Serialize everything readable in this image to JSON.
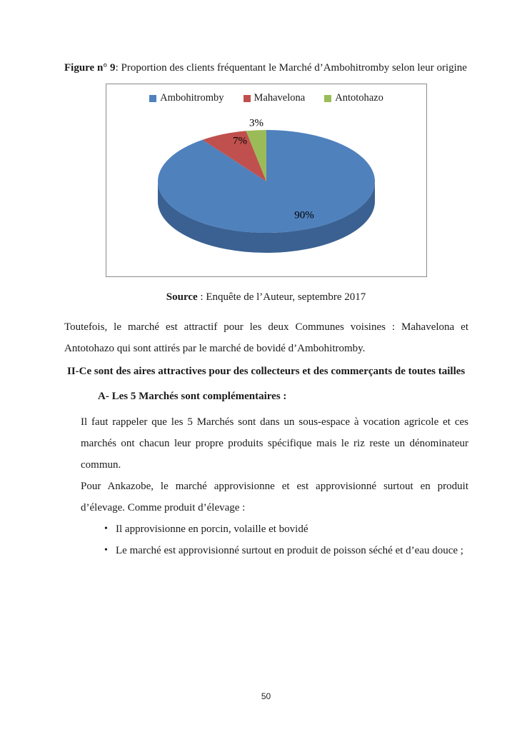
{
  "figure": {
    "title_bold": "Figure n° 9",
    "title_rest": ": Proportion des clients fréquentant le Marché d’Ambohitromby selon leur origine",
    "source_bold": "Source",
    "source_rest": " : Enquête de l’Auteur, septembre 2017"
  },
  "chart_data": {
    "type": "pie",
    "style": "3d",
    "labels": [
      "Ambohitromby",
      "Mahavelona",
      "Antotohazo"
    ],
    "values": [
      90,
      7,
      3
    ],
    "value_labels": [
      "90%",
      "7%",
      "3%"
    ],
    "colors": [
      "#4f81bd",
      "#c0504d",
      "#9bbb59"
    ],
    "side_color": "#3a6191",
    "legend_position": "top",
    "unit": "percent",
    "start_angle_deg": 0,
    "direction": "clockwise"
  },
  "body": {
    "para1": "Toutefois, le marché est attractif pour les deux Communes voisines : Mahavelona et Antotohazo qui sont attirés par le marché de bovidé d’Ambohitromby.",
    "heading2": "II-Ce sont des aires attractives pour des collecteurs et des commerçants de toutes tailles",
    "headingA": "A- Les 5 Marchés sont complémentaires :",
    "para2": "Il faut rappeler que les 5 Marchés sont dans un sous-espace à vocation agricole et ces marchés ont chacun leur propre produits spécifique mais le riz reste un dénominateur commun.",
    "para3": "Pour Ankazobe, le marché approvisionne et est approvisionné surtout en produit d’élevage. Comme produit d’élevage :",
    "bullets": [
      "Il approvisionne en porcin, volaille et bovidé",
      "Le marché est approvisionné surtout en produit de poisson séché et d’eau douce ;"
    ]
  },
  "footer": {
    "page_number": "50"
  }
}
